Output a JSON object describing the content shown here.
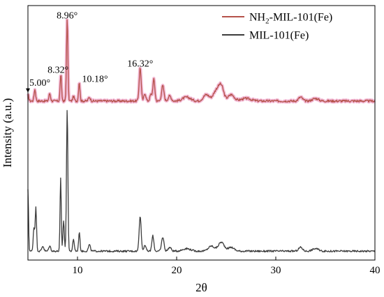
{
  "chart_data": {
    "type": "line",
    "title": "",
    "xlabel": "2θ",
    "ylabel": "Intensity (a.u.)",
    "xlim": [
      5,
      40
    ],
    "ylim": [
      0,
      100
    ],
    "x_ticks": [
      10,
      20,
      30,
      40
    ],
    "x_tick_labels": [
      "10",
      "20",
      "30",
      "40"
    ],
    "y_ticks_shown": false,
    "grid": false,
    "legend_position": "top-right",
    "colors": {
      "NH2-MIL-101(Fe)": "#b5524a",
      "MIL-101(Fe)": "#3c3c3c",
      "shade": "#f2b8d4"
    },
    "series": [
      {
        "name": "NH2-MIL-101(Fe)",
        "legend_base": "NH",
        "legend_sub": "2",
        "legend_rest": "-MIL-101(Fe)",
        "baseline": 62.5,
        "noise": 0.45,
        "peaks": [
          [
            5.0,
            2.5,
            0.08
          ],
          [
            5.7,
            4.5,
            0.08
          ],
          [
            7.2,
            3.0,
            0.08
          ],
          [
            8.32,
            10.5,
            0.07
          ],
          [
            8.96,
            32.0,
            0.07
          ],
          [
            9.6,
            1.8,
            0.08
          ],
          [
            10.18,
            7.5,
            0.07
          ],
          [
            11.2,
            1.5,
            0.1
          ],
          [
            16.32,
            13.0,
            0.1
          ],
          [
            16.8,
            3.0,
            0.1
          ],
          [
            17.4,
            2.5,
            0.1
          ],
          [
            17.7,
            8.5,
            0.1
          ],
          [
            18.6,
            6.0,
            0.12
          ],
          [
            19.3,
            2.0,
            0.15
          ],
          [
            21.0,
            1.5,
            0.4
          ],
          [
            23.0,
            2.5,
            0.3
          ],
          [
            24.0,
            4.0,
            0.3
          ],
          [
            24.5,
            5.5,
            0.25
          ],
          [
            25.5,
            2.5,
            0.3
          ],
          [
            27.0,
            1.0,
            0.5
          ],
          [
            32.5,
            1.5,
            0.2
          ],
          [
            34.0,
            1.0,
            0.3
          ]
        ]
      },
      {
        "name": "MIL-101(Fe)",
        "baseline": 3.5,
        "noise": 0.35,
        "peaks": [
          [
            5.0,
            24.0,
            0.06
          ],
          [
            5.6,
            9.0,
            0.07
          ],
          [
            5.8,
            17.0,
            0.07
          ],
          [
            6.5,
            2.0,
            0.1
          ],
          [
            7.2,
            2.0,
            0.1
          ],
          [
            8.3,
            28.5,
            0.06
          ],
          [
            8.6,
            12.0,
            0.07
          ],
          [
            8.96,
            56.0,
            0.07
          ],
          [
            9.6,
            4.5,
            0.08
          ],
          [
            10.18,
            7.5,
            0.07
          ],
          [
            11.2,
            2.5,
            0.1
          ],
          [
            16.32,
            14.0,
            0.1
          ],
          [
            16.8,
            2.5,
            0.1
          ],
          [
            17.6,
            6.0,
            0.1
          ],
          [
            18.6,
            5.5,
            0.12
          ],
          [
            19.3,
            1.5,
            0.15
          ],
          [
            21.0,
            1.0,
            0.4
          ],
          [
            23.5,
            2.0,
            0.3
          ],
          [
            24.5,
            3.5,
            0.3
          ],
          [
            25.5,
            1.5,
            0.3
          ],
          [
            32.5,
            1.5,
            0.2
          ],
          [
            34.0,
            1.0,
            0.3
          ]
        ]
      }
    ],
    "annotations": [
      {
        "label": "5.00°",
        "x": 5.0,
        "y": 68.5
      },
      {
        "label": "8.32°",
        "x": 8.32,
        "y": 73.5
      },
      {
        "label": "8.96°",
        "x": 8.96,
        "y": 95.0
      },
      {
        "label": "10.18°",
        "x": 10.18,
        "y": 70.0
      },
      {
        "label": "16.32°",
        "x": 16.32,
        "y": 76.0
      }
    ]
  }
}
